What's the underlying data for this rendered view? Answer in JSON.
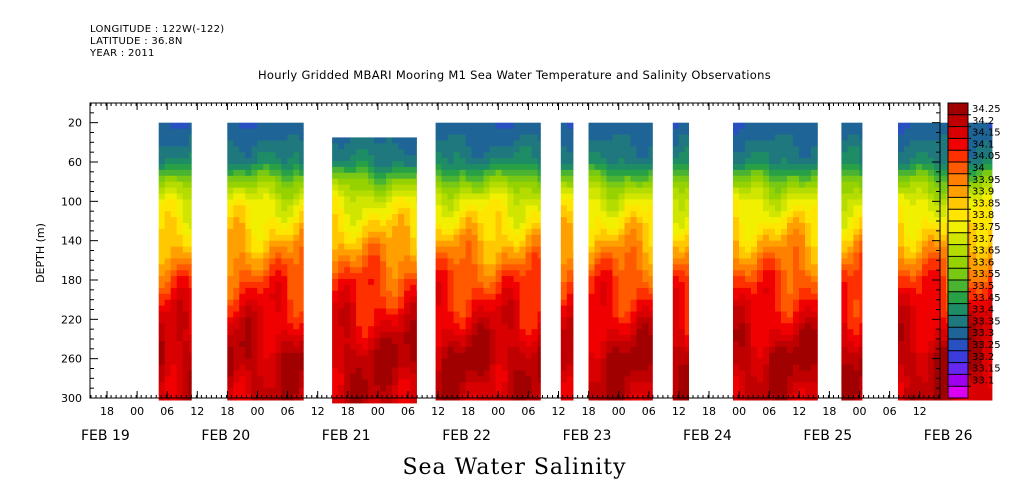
{
  "header": {
    "longitude": "LONGITUDE : 122W(-122)",
    "latitude": "LATITUDE : 36.8N",
    "year": "YEAR : 2011"
  },
  "chart_data": {
    "type": "heatmap",
    "title": "Hourly Gridded MBARI Mooring M1 Sea Water Temperature and Salinity Observations",
    "variable": "Sea Water Salinity",
    "ylabel": "DEPTH (m)",
    "y_inverted": true,
    "ylim": [
      300,
      0
    ],
    "yticks": [
      20,
      60,
      100,
      140,
      180,
      220,
      260,
      300
    ],
    "xlim_hours": [
      0,
      8.1
    ],
    "xtick_hour_labels": [
      "18",
      "00",
      "06",
      "12",
      "18",
      "00",
      "06",
      "12",
      "18",
      "00",
      "06",
      "12",
      "18",
      "00",
      "06",
      "12",
      "18",
      "00",
      "06",
      "12",
      "18",
      "00",
      "06",
      "12",
      "18",
      "00",
      "06",
      "12",
      "18",
      "00",
      "06",
      "12"
    ],
    "date_labels": [
      "FEB 19",
      "FEB 20",
      "FEB 21",
      "FEB 22",
      "FEB 23",
      "FEB 24",
      "FEB 25",
      "FEB 26"
    ],
    "colorbar_levels": [
      "34.25",
      "34.2",
      "34.15",
      "34.1",
      "34.05",
      "34",
      "33.95",
      "33.9",
      "33.85",
      "33.8",
      "33.75",
      "33.7",
      "33.65",
      "33.6",
      "33.55",
      "33.5",
      "33.45",
      "33.4",
      "33.35",
      "33.3",
      "33.25",
      "33.2",
      "33.15",
      "33.1"
    ],
    "colorbar_colors": [
      "#a00000",
      "#c00000",
      "#d80000",
      "#f00000",
      "#ff3000",
      "#ff5a00",
      "#ff8000",
      "#ffa000",
      "#ffc800",
      "#ffe600",
      "#f0f000",
      "#d0e600",
      "#b4dc00",
      "#96d200",
      "#78c814",
      "#4ab432",
      "#28a046",
      "#1e8c64",
      "#1e787e",
      "#1e6496",
      "#2850c0",
      "#3c3cdc",
      "#6428f0",
      "#a000f0",
      "#dc00f0"
    ],
    "data_segments_days": [
      {
        "start": 0.28,
        "end": 0.55,
        "top_depth": 20
      },
      {
        "start": 0.85,
        "end": 1.48,
        "top_depth": 20
      },
      {
        "start": 1.72,
        "end": 2.42,
        "top_depth": 35
      },
      {
        "start": 2.58,
        "end": 3.45,
        "top_depth": 20
      },
      {
        "start": 3.62,
        "end": 3.72,
        "top_depth": 20
      },
      {
        "start": 3.85,
        "end": 4.38,
        "top_depth": 20
      },
      {
        "start": 4.55,
        "end": 4.68,
        "top_depth": 20
      },
      {
        "start": 5.05,
        "end": 5.75,
        "top_depth": 20
      },
      {
        "start": 5.95,
        "end": 6.12,
        "top_depth": 20
      },
      {
        "start": 6.42,
        "end": 7.2,
        "top_depth": 20
      }
    ],
    "profile_depth_values": [
      {
        "depth": 20,
        "salinity": 33.3
      },
      {
        "depth": 60,
        "salinity": 33.4
      },
      {
        "depth": 80,
        "salinity": 33.6
      },
      {
        "depth": 100,
        "salinity": 33.75
      },
      {
        "depth": 140,
        "salinity": 33.9
      },
      {
        "depth": 180,
        "salinity": 34.05
      },
      {
        "depth": 220,
        "salinity": 34.15
      },
      {
        "depth": 260,
        "salinity": 34.25
      },
      {
        "depth": 300,
        "salinity": 34.2
      }
    ]
  },
  "footer": "Sea Water Salinity"
}
